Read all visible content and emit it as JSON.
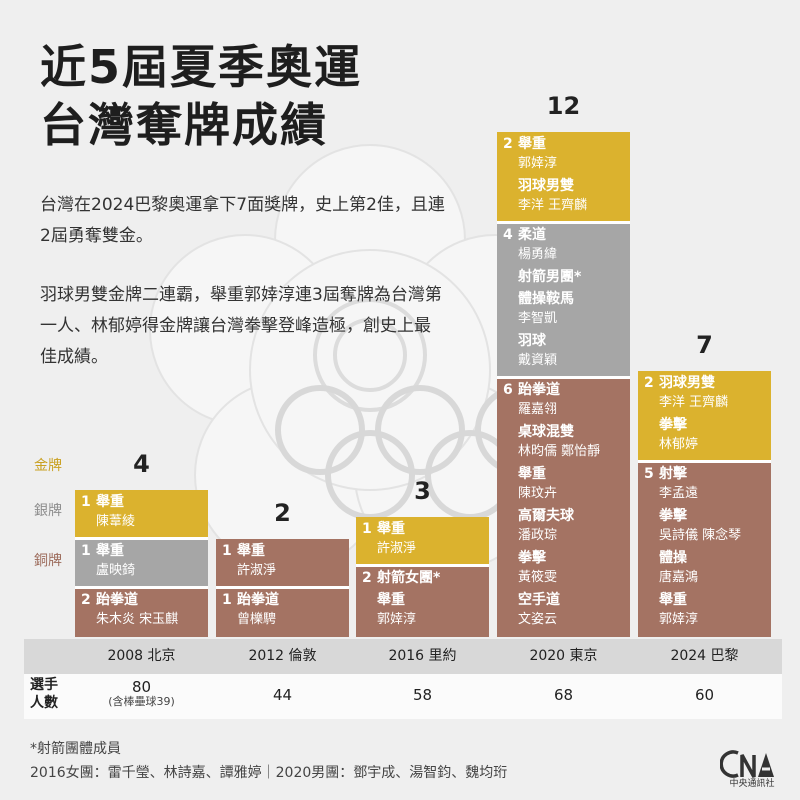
{
  "title_lines": [
    "近5屆夏季奧運",
    "台灣奪牌成績"
  ],
  "description": [
    "台灣在2024巴黎奧運拿下7面獎牌，史上第2佳，且連2屆勇奪雙金。",
    "羽球男雙金牌二連霸，舉重郭婞淳連3屆奪牌為台灣第一人、林郁婷得金牌讓台灣拳擊登峰造極，創史上最佳成績。"
  ],
  "medal_labels": {
    "gold": "金牌",
    "silver": "銀牌",
    "bronze": "銅牌"
  },
  "colors": {
    "gold": "#dbb22e",
    "silver": "#a6a6a6",
    "bronze": "#a47363",
    "background": "#efefef"
  },
  "chart_data": {
    "type": "bar",
    "stacked": true,
    "categories": [
      "2008 北京",
      "2012 倫敦",
      "2016 里約",
      "2020 東京",
      "2024 巴黎"
    ],
    "series": [
      {
        "name": "金牌",
        "values": [
          1,
          0,
          1,
          2,
          2
        ]
      },
      {
        "name": "銀牌",
        "values": [
          1,
          0,
          0,
          4,
          0
        ]
      },
      {
        "name": "銅牌",
        "values": [
          2,
          2,
          2,
          6,
          5
        ]
      }
    ],
    "totals": [
      4,
      2,
      3,
      12,
      7
    ],
    "medal_details": [
      {
        "gold": [
          {
            "count": "1",
            "items": [
              {
                "sport": "舉重",
                "athletes": "陳葦綾"
              }
            ]
          }
        ],
        "silver": [
          {
            "count": "1",
            "items": [
              {
                "sport": "舉重",
                "athletes": "盧映錡"
              }
            ]
          }
        ],
        "bronze": [
          {
            "count": "2",
            "items": [
              {
                "sport": "跆拳道",
                "athletes": "朱木炎 宋玉麒"
              }
            ]
          }
        ]
      },
      {
        "gold": [],
        "silver": [],
        "bronze": [
          {
            "count": "1",
            "items": [
              {
                "sport": "舉重",
                "athletes": "許淑淨"
              }
            ]
          },
          {
            "count": "1",
            "items": [
              {
                "sport": "跆拳道",
                "athletes": "曾櫟騁"
              }
            ]
          }
        ]
      },
      {
        "gold": [
          {
            "count": "1",
            "items": [
              {
                "sport": "舉重",
                "athletes": "許淑淨"
              }
            ]
          }
        ],
        "silver": [],
        "bronze": [
          {
            "count": "2",
            "items": [
              {
                "sport": "射箭女團*",
                "athletes": ""
              },
              {
                "sport": "舉重",
                "athletes": "郭婞淳"
              }
            ]
          }
        ]
      },
      {
        "gold": [
          {
            "count": "2",
            "items": [
              {
                "sport": "舉重",
                "athletes": "郭婞淳"
              },
              {
                "sport": "羽球男雙",
                "athletes": "李洋 王齊麟"
              }
            ]
          }
        ],
        "silver": [
          {
            "count": "4",
            "items": [
              {
                "sport": "柔道",
                "athletes": "楊勇緯"
              },
              {
                "sport": "射箭男團*",
                "athletes": ""
              },
              {
                "sport": "體操鞍馬",
                "athletes": "李智凱"
              },
              {
                "sport": "羽球",
                "athletes": "戴資穎"
              }
            ]
          }
        ],
        "bronze": [
          {
            "count": "6",
            "items": [
              {
                "sport": "跆拳道",
                "athletes": "羅嘉翎"
              },
              {
                "sport": "桌球混雙",
                "athletes": "林昀儒 鄭怡靜"
              },
              {
                "sport": "舉重",
                "athletes": "陳玟卉"
              },
              {
                "sport": "高爾夫球",
                "athletes": "潘政琮"
              },
              {
                "sport": "拳擊",
                "athletes": "黃筱雯"
              },
              {
                "sport": "空手道",
                "athletes": "文姿云"
              }
            ]
          }
        ]
      },
      {
        "gold": [
          {
            "count": "2",
            "items": [
              {
                "sport": "羽球男雙",
                "athletes": "李洋 王齊麟"
              },
              {
                "sport": "拳擊",
                "athletes": "林郁婷"
              }
            ]
          }
        ],
        "silver": [],
        "bronze": [
          {
            "count": "5",
            "items": [
              {
                "sport": "射擊",
                "athletes": "李孟遠"
              },
              {
                "sport": "拳擊",
                "athletes": "吳詩儀 陳念琴"
              },
              {
                "sport": "體操",
                "athletes": "唐嘉鴻"
              },
              {
                "sport": "舉重",
                "athletes": "郭婞淳"
              }
            ]
          }
        ]
      }
    ]
  },
  "athletes_row": {
    "label": "選手人數",
    "values": [
      "80",
      "44",
      "58",
      "68",
      "60"
    ],
    "notes": [
      "(含棒壘球39)",
      "",
      "",
      "",
      ""
    ]
  },
  "footnotes": [
    "*射箭團體成員",
    "2016女團：雷千瑩、林詩嘉、譚雅婷｜2020男團：鄧宇成、湯智鈞、魏均珩"
  ],
  "logo": {
    "mark": "CNA",
    "text": "中央通訊社"
  }
}
